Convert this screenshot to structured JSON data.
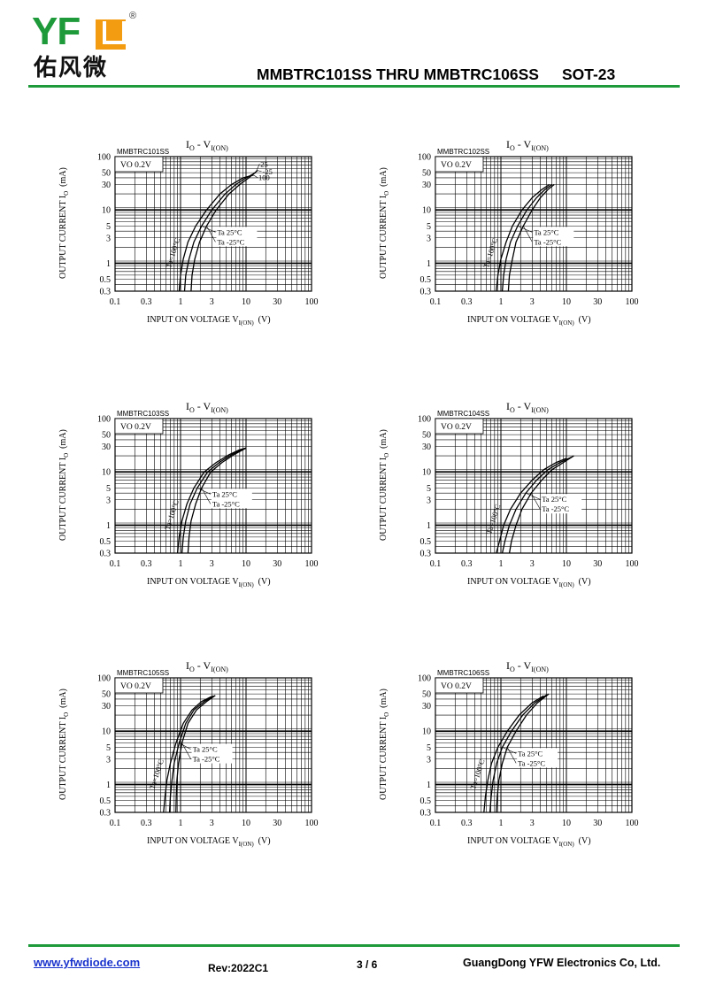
{
  "header": {
    "logo_latin": "YFW",
    "logo_cn": "佑风微",
    "logo_reg": "®",
    "title": "MMBTRC101SS THRU MMBTRC106SS",
    "package": "SOT-23"
  },
  "footer": {
    "website": "www.yfwdiode.com",
    "revision": "Rev:2022C1",
    "page": "3 / 6",
    "company": "GuangDong YFW Electronics Co, Ltd."
  },
  "colors": {
    "brand_green": "#1e9a3a",
    "brand_orange": "#f39c12",
    "link": "#1a33cc"
  },
  "chart_data": [
    {
      "type": "line",
      "scale": "log-log",
      "title_main": "I",
      "title_sub1": "O",
      "title_mid": " - V",
      "title_sub2": "I(ON)",
      "part": "MMBTRC101SS",
      "condition": "VO 0.2V",
      "xlabel": "INPUT ON VOLTAGE V",
      "xlabel_sub": "I(ON)",
      "xlabel_unit": "(V)",
      "ylabel": "OUTPUT CURRENT I",
      "ylabel_sub": "O",
      "ylabel_unit": "(mA)",
      "xlim": [
        0.1,
        100
      ],
      "ylim": [
        0.3,
        100
      ],
      "xticks": [
        "0.1",
        "0.3",
        "1",
        "3",
        "10",
        "30",
        "100"
      ],
      "yticks": [
        "0.3",
        "0.5",
        "1",
        "3",
        "5",
        "10",
        "30",
        "50",
        "100"
      ],
      "legend": [
        "Ta=100°C",
        "Ta 25°C",
        "Ta -25°C"
      ],
      "curve_labels": [
        "25",
        "-25",
        "100"
      ],
      "series": [
        {
          "name": "Ta=100°C",
          "x": [
            0.95,
            1.0,
            1.1,
            1.3,
            1.7,
            2.5,
            4,
            6,
            9,
            13
          ],
          "y": [
            0.3,
            0.6,
            1.2,
            2.5,
            5,
            10,
            20,
            30,
            40,
            45
          ]
        },
        {
          "name": "Ta 25°C",
          "x": [
            1.15,
            1.2,
            1.35,
            1.6,
            2.1,
            3,
            4.8,
            7,
            10,
            14
          ],
          "y": [
            0.3,
            0.6,
            1.2,
            2.5,
            5,
            10,
            20,
            30,
            40,
            50
          ]
        },
        {
          "name": "Ta -25°C",
          "x": [
            1.45,
            1.5,
            1.65,
            1.95,
            2.5,
            3.5,
            5.5,
            8,
            11,
            15
          ],
          "y": [
            0.3,
            0.6,
            1.2,
            2.5,
            5,
            10,
            20,
            30,
            40,
            55
          ]
        }
      ]
    },
    {
      "type": "line",
      "scale": "log-log",
      "title_main": "I",
      "title_sub1": "O",
      "title_mid": " - V",
      "title_sub2": "I(ON)",
      "part": "MMBTRC102SS",
      "condition": "VO 0.2V",
      "xlabel": "INPUT ON VOLTAGE V",
      "xlabel_sub": "I(ON)",
      "xlabel_unit": "(V)",
      "ylabel": "OUTPUT CURRENT I",
      "ylabel_sub": "O",
      "ylabel_unit": "(mA)",
      "xlim": [
        0.1,
        100
      ],
      "ylim": [
        0.3,
        100
      ],
      "xticks": [
        "0.1",
        "0.3",
        "1",
        "3",
        "10",
        "30",
        "100"
      ],
      "yticks": [
        "0.3",
        "0.5",
        "1",
        "3",
        "5",
        "10",
        "30",
        "50",
        "100"
      ],
      "legend": [
        "Ta=100°C",
        "Ta 25°C",
        "Ta -25°C"
      ],
      "curve_labels": [],
      "series": [
        {
          "name": "Ta=100°C",
          "x": [
            0.85,
            0.9,
            1.0,
            1.2,
            1.5,
            2.1,
            3,
            4.2,
            5.5
          ],
          "y": [
            0.3,
            0.6,
            1.2,
            2.5,
            5,
            10,
            17,
            24,
            30
          ]
        },
        {
          "name": "Ta 25°C",
          "x": [
            1.05,
            1.1,
            1.2,
            1.4,
            1.8,
            2.5,
            3.5,
            4.7,
            6
          ],
          "y": [
            0.3,
            0.6,
            1.2,
            2.5,
            5,
            10,
            17,
            24,
            30
          ]
        },
        {
          "name": "Ta -25°C",
          "x": [
            1.3,
            1.35,
            1.5,
            1.7,
            2.2,
            3.0,
            4.0,
            5.2,
            6.5
          ],
          "y": [
            0.3,
            0.6,
            1.2,
            2.5,
            5,
            10,
            17,
            24,
            30
          ]
        }
      ]
    },
    {
      "type": "line",
      "scale": "log-log",
      "title_main": "I",
      "title_sub1": "O",
      "title_mid": " - V",
      "title_sub2": "I(ON)",
      "part": "MMBTRC103SS",
      "condition": "VO 0.2V",
      "xlabel": "INPUT ON VOLTAGE V",
      "xlabel_sub": "I(ON)",
      "xlabel_unit": "(V)",
      "ylabel": "OUTPUT CURRENT I",
      "ylabel_sub": "O",
      "ylabel_unit": "(mA)",
      "xlim": [
        0.1,
        100
      ],
      "ylim": [
        0.3,
        100
      ],
      "xticks": [
        "0.1",
        "0.3",
        "1",
        "3",
        "10",
        "30",
        "100"
      ],
      "yticks": [
        "0.3",
        "0.5",
        "1",
        "3",
        "5",
        "10",
        "30",
        "50",
        "100"
      ],
      "legend": [
        "Ta=100°C",
        "Ta 25°C",
        "Ta -25°C"
      ],
      "curve_labels": [],
      "series": [
        {
          "name": "Ta=100°C",
          "x": [
            0.9,
            0.95,
            1.05,
            1.25,
            1.6,
            2.3,
            3.5,
            5.5,
            8,
            10
          ],
          "y": [
            0.3,
            0.6,
            1.2,
            2.5,
            5,
            10,
            15,
            21,
            26,
            28
          ]
        },
        {
          "name": "Ta 25°C",
          "x": [
            1.05,
            1.1,
            1.2,
            1.4,
            1.8,
            2.6,
            3.9,
            6,
            8.5,
            10
          ],
          "y": [
            0.3,
            0.6,
            1.2,
            2.5,
            5,
            10,
            15,
            21,
            26,
            28
          ]
        },
        {
          "name": "Ta -25°C",
          "x": [
            1.3,
            1.35,
            1.45,
            1.7,
            2.1,
            2.9,
            4.3,
            6.5,
            9,
            10
          ],
          "y": [
            0.3,
            0.6,
            1.2,
            2.5,
            5,
            10,
            15,
            21,
            26,
            28
          ]
        }
      ]
    },
    {
      "type": "line",
      "scale": "log-log",
      "title_main": "I",
      "title_sub1": "O",
      "title_mid": " - V",
      "title_sub2": "I(ON)",
      "part": "MMBTRC104SS",
      "condition": "VO 0.2V",
      "xlabel": "INPUT ON VOLTAGE V",
      "xlabel_sub": "I(ON)",
      "xlabel_unit": "(V)",
      "ylabel": "OUTPUT CURRENT I",
      "ylabel_sub": "O",
      "ylabel_unit": "(mA)",
      "xlim": [
        0.1,
        100
      ],
      "ylim": [
        0.3,
        100
      ],
      "xticks": [
        "0.1",
        "0.3",
        "1",
        "3",
        "10",
        "30",
        "100"
      ],
      "yticks": [
        "0.3",
        "0.5",
        "1",
        "3",
        "5",
        "10",
        "30",
        "50",
        "100"
      ],
      "legend": [
        "Ta=100°C",
        "Ta 25°C",
        "Ta -25°C"
      ],
      "curve_labels": [],
      "series": [
        {
          "name": "Ta=100°C",
          "x": [
            0.85,
            0.95,
            1.1,
            1.4,
            2.0,
            3.0,
            4.5,
            7,
            10
          ],
          "y": [
            0.3,
            0.5,
            1,
            2,
            4,
            7,
            11,
            15,
            18
          ]
        },
        {
          "name": "Ta 25°C",
          "x": [
            1.05,
            1.15,
            1.35,
            1.7,
            2.4,
            3.5,
            5.2,
            8,
            12
          ],
          "y": [
            0.3,
            0.5,
            1,
            2,
            4,
            7,
            11,
            15,
            19
          ]
        },
        {
          "name": "Ta -25°C",
          "x": [
            1.35,
            1.45,
            1.7,
            2.1,
            2.9,
            4.2,
            6,
            9,
            13
          ],
          "y": [
            0.3,
            0.5,
            1,
            2,
            4,
            7,
            11,
            15,
            20
          ]
        }
      ]
    },
    {
      "type": "line",
      "scale": "log-log",
      "title_main": "I",
      "title_sub1": "O",
      "title_mid": " - V",
      "title_sub2": "I(ON)",
      "part": "MMBTRC105SS",
      "condition": "VO 0.2V",
      "xlabel": "INPUT ON VOLTAGE V",
      "xlabel_sub": "I(ON)",
      "xlabel_unit": "(V)",
      "ylabel": "OUTPUT CURRENT I",
      "ylabel_sub": "O",
      "ylabel_unit": "(mA)",
      "xlim": [
        0.1,
        100
      ],
      "ylim": [
        0.3,
        100
      ],
      "xticks": [
        "0.1",
        "0.3",
        "1",
        "3",
        "10",
        "30",
        "100"
      ],
      "yticks": [
        "0.3",
        "0.5",
        "1",
        "3",
        "5",
        "10",
        "30",
        "50",
        "100"
      ],
      "legend": [
        "Ta=100°C",
        "Ta 25°C",
        "Ta -25°C"
      ],
      "curve_labels": [],
      "series": [
        {
          "name": "Ta=100°C",
          "x": [
            0.55,
            0.58,
            0.62,
            0.7,
            0.85,
            1.1,
            1.5,
            2.1,
            3.0
          ],
          "y": [
            0.3,
            0.6,
            1.2,
            2.5,
            6,
            14,
            25,
            36,
            45
          ]
        },
        {
          "name": "Ta 25°C",
          "x": [
            0.68,
            0.7,
            0.74,
            0.8,
            0.95,
            1.2,
            1.6,
            2.3,
            3.2
          ],
          "y": [
            0.3,
            0.6,
            1.2,
            2.5,
            6,
            14,
            25,
            36,
            46
          ]
        },
        {
          "name": "Ta -25°C",
          "x": [
            0.85,
            0.86,
            0.88,
            0.93,
            1.05,
            1.3,
            1.75,
            2.5,
            3.4
          ],
          "y": [
            0.3,
            0.6,
            1.2,
            2.5,
            6,
            14,
            25,
            36,
            47
          ]
        }
      ]
    },
    {
      "type": "line",
      "scale": "log-log",
      "title_main": "I",
      "title_sub1": "O",
      "title_mid": " - V",
      "title_sub2": "I(ON)",
      "part": "MMBTRC106SS",
      "condition": "VO 0.2V",
      "xlabel": "INPUT ON VOLTAGE V",
      "xlabel_sub": "I(ON)",
      "xlabel_unit": "(V)",
      "ylabel": "OUTPUT CURRENT I",
      "ylabel_sub": "O",
      "ylabel_unit": "(mA)",
      "xlim": [
        0.1,
        100
      ],
      "ylim": [
        0.3,
        100
      ],
      "xticks": [
        "0.1",
        "0.3",
        "1",
        "3",
        "10",
        "30",
        "100"
      ],
      "yticks": [
        "0.3",
        "0.5",
        "1",
        "3",
        "5",
        "10",
        "30",
        "50",
        "100"
      ],
      "legend": [
        "Ta=100°C",
        "Ta 25°C",
        "Ta -25°C"
      ],
      "curve_labels": [],
      "series": [
        {
          "name": "Ta=100°C",
          "x": [
            0.55,
            0.58,
            0.63,
            0.72,
            0.9,
            1.25,
            1.9,
            3.0,
            4.5
          ],
          "y": [
            0.3,
            0.6,
            1.2,
            2.5,
            5,
            10,
            20,
            34,
            46
          ]
        },
        {
          "name": "Ta 25°C",
          "x": [
            0.68,
            0.71,
            0.76,
            0.86,
            1.05,
            1.45,
            2.15,
            3.3,
            5.0
          ],
          "y": [
            0.3,
            0.6,
            1.2,
            2.5,
            5,
            10,
            20,
            34,
            48
          ]
        },
        {
          "name": "Ta -25°C",
          "x": [
            0.85,
            0.88,
            0.93,
            1.05,
            1.25,
            1.7,
            2.45,
            3.6,
            5.4
          ],
          "y": [
            0.3,
            0.6,
            1.2,
            2.5,
            5,
            10,
            20,
            34,
            50
          ]
        }
      ]
    }
  ]
}
